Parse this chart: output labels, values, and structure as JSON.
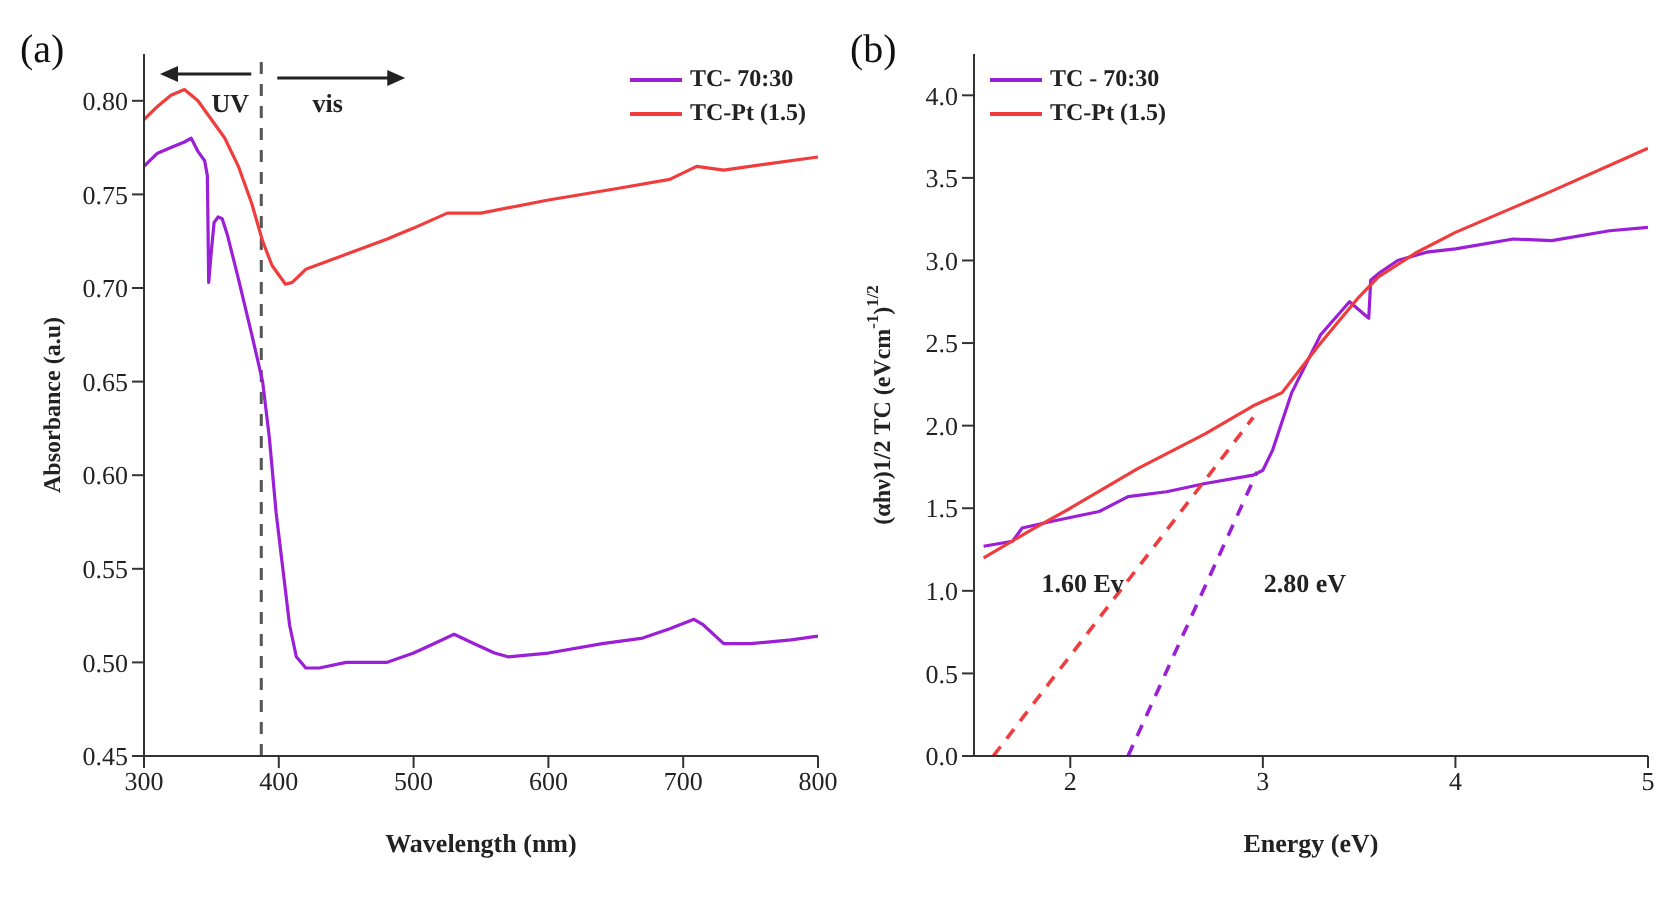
{
  "chart_data": [
    {
      "type": "line",
      "title": "(a)",
      "xlabel": "Wavelength (nm)",
      "ylabel": "Absorbance (a.u)",
      "xlim": [
        300,
        800
      ],
      "xticks": [
        300,
        400,
        500,
        600,
        700,
        800
      ],
      "ylim": [
        0.45,
        0.825
      ],
      "yticks": [
        {
          "value": 0.45,
          "label": "0.45"
        },
        {
          "value": 0.5,
          "label": "0.50"
        },
        {
          "value": 0.55,
          "label": "0.55"
        },
        {
          "value": 0.6,
          "label": "0.60"
        },
        {
          "value": 0.65,
          "label": "0.65"
        },
        {
          "value": 0.7,
          "label": "0.70"
        },
        {
          "value": 0.75,
          "label": "0.75"
        },
        {
          "value": 0.8,
          "label": "0.80"
        }
      ],
      "legend": "top right",
      "grid": false,
      "marker": "none",
      "series": [
        {
          "name": "TC- 70:30",
          "color": "#9b1fd6",
          "x": [
            300,
            310,
            320,
            330,
            335,
            340,
            345,
            347,
            348,
            350,
            352,
            355,
            358,
            362,
            370,
            380,
            388,
            393,
            398,
            403,
            408,
            413,
            420,
            430,
            450,
            480,
            500,
            515,
            530,
            545,
            560,
            570,
            600,
            640,
            670,
            690,
            708,
            715,
            730,
            750,
            780,
            800
          ],
          "values": [
            0.765,
            0.772,
            0.775,
            0.778,
            0.78,
            0.773,
            0.768,
            0.76,
            0.703,
            0.72,
            0.735,
            0.738,
            0.737,
            0.728,
            0.705,
            0.675,
            0.65,
            0.62,
            0.58,
            0.55,
            0.52,
            0.503,
            0.497,
            0.497,
            0.5,
            0.5,
            0.505,
            0.51,
            0.515,
            0.51,
            0.505,
            0.503,
            0.505,
            0.51,
            0.513,
            0.518,
            0.523,
            0.52,
            0.51,
            0.51,
            0.512,
            0.514
          ]
        },
        {
          "name": "TC-Pt (1.5)",
          "color": "#f03c3c",
          "x": [
            300,
            310,
            320,
            330,
            340,
            350,
            360,
            370,
            380,
            388,
            395,
            405,
            410,
            420,
            450,
            480,
            500,
            525,
            550,
            600,
            650,
            690,
            710,
            730,
            760,
            800
          ],
          "values": [
            0.79,
            0.797,
            0.803,
            0.806,
            0.8,
            0.79,
            0.78,
            0.765,
            0.745,
            0.725,
            0.712,
            0.702,
            0.703,
            0.71,
            0.718,
            0.726,
            0.732,
            0.74,
            0.74,
            0.747,
            0.753,
            0.758,
            0.765,
            0.763,
            0.766,
            0.77
          ]
        }
      ],
      "ref_lines": [
        {
          "axis": "x",
          "value": 387,
          "color": "#555555",
          "line_style": "dashed"
        }
      ],
      "annotations": [
        "UV",
        "vis"
      ]
    },
    {
      "type": "line",
      "title": "(b)",
      "xlabel": "Energy (eV)",
      "ylabel": "(αhν)1/2 TC (eVcm$^{-1}$)$^{1/2}$",
      "xlim": [
        1.5,
        5
      ],
      "xticks": [
        2,
        3,
        4,
        5
      ],
      "ylim": [
        0,
        4.25
      ],
      "yticks": [
        {
          "value": 0,
          "label": "0.0"
        },
        {
          "value": 0.5,
          "label": "0.5"
        },
        {
          "value": 1,
          "label": "1.0"
        },
        {
          "value": 1.5,
          "label": "1.5"
        },
        {
          "value": 2,
          "label": "2.0"
        },
        {
          "value": 2.5,
          "label": "2.5"
        },
        {
          "value": 3,
          "label": "3.0"
        },
        {
          "value": 3.5,
          "label": "3.5"
        },
        {
          "value": 4,
          "label": "4.0"
        }
      ],
      "legend": "top left",
      "grid": false,
      "marker": "none",
      "series": [
        {
          "name": "TC - 70:30",
          "color": "#9b1fd6",
          "x": [
            1.55,
            1.7,
            1.75,
            1.9,
            2.15,
            2.3,
            2.5,
            2.7,
            2.95,
            3.0,
            3.05,
            3.15,
            3.3,
            3.45,
            3.5,
            3.55,
            3.56,
            3.6,
            3.7,
            3.85,
            4.0,
            4.3,
            4.5,
            4.8,
            5.0
          ],
          "values": [
            1.27,
            1.3,
            1.38,
            1.42,
            1.48,
            1.57,
            1.6,
            1.65,
            1.7,
            1.73,
            1.85,
            2.2,
            2.55,
            2.75,
            2.7,
            2.65,
            2.88,
            2.92,
            3.0,
            3.05,
            3.07,
            3.13,
            3.12,
            3.18,
            3.2
          ]
        },
        {
          "name": "TC-Pt (1.5)",
          "color": "#f03c3c",
          "x": [
            1.55,
            1.8,
            2.0,
            2.35,
            2.7,
            2.95,
            3.1,
            3.2,
            3.3,
            3.5,
            3.6,
            3.8,
            4.0,
            4.5,
            5.0
          ],
          "values": [
            1.2,
            1.37,
            1.5,
            1.74,
            1.95,
            2.12,
            2.2,
            2.35,
            2.5,
            2.78,
            2.9,
            3.05,
            3.17,
            3.42,
            3.68
          ]
        },
        {
          "type": "line",
          "line_style": "dashed",
          "color": "#f03c3c",
          "x": [
            1.6,
            2.95
          ],
          "values": [
            0,
            2.05
          ]
        },
        {
          "type": "line",
          "line_style": "dashed",
          "color": "#9b1fd6",
          "x": [
            2.3,
            2.97
          ],
          "values": [
            0,
            1.72
          ]
        }
      ],
      "annotations": [
        "1.60 Ev",
        "2.80 eV"
      ]
    }
  ]
}
